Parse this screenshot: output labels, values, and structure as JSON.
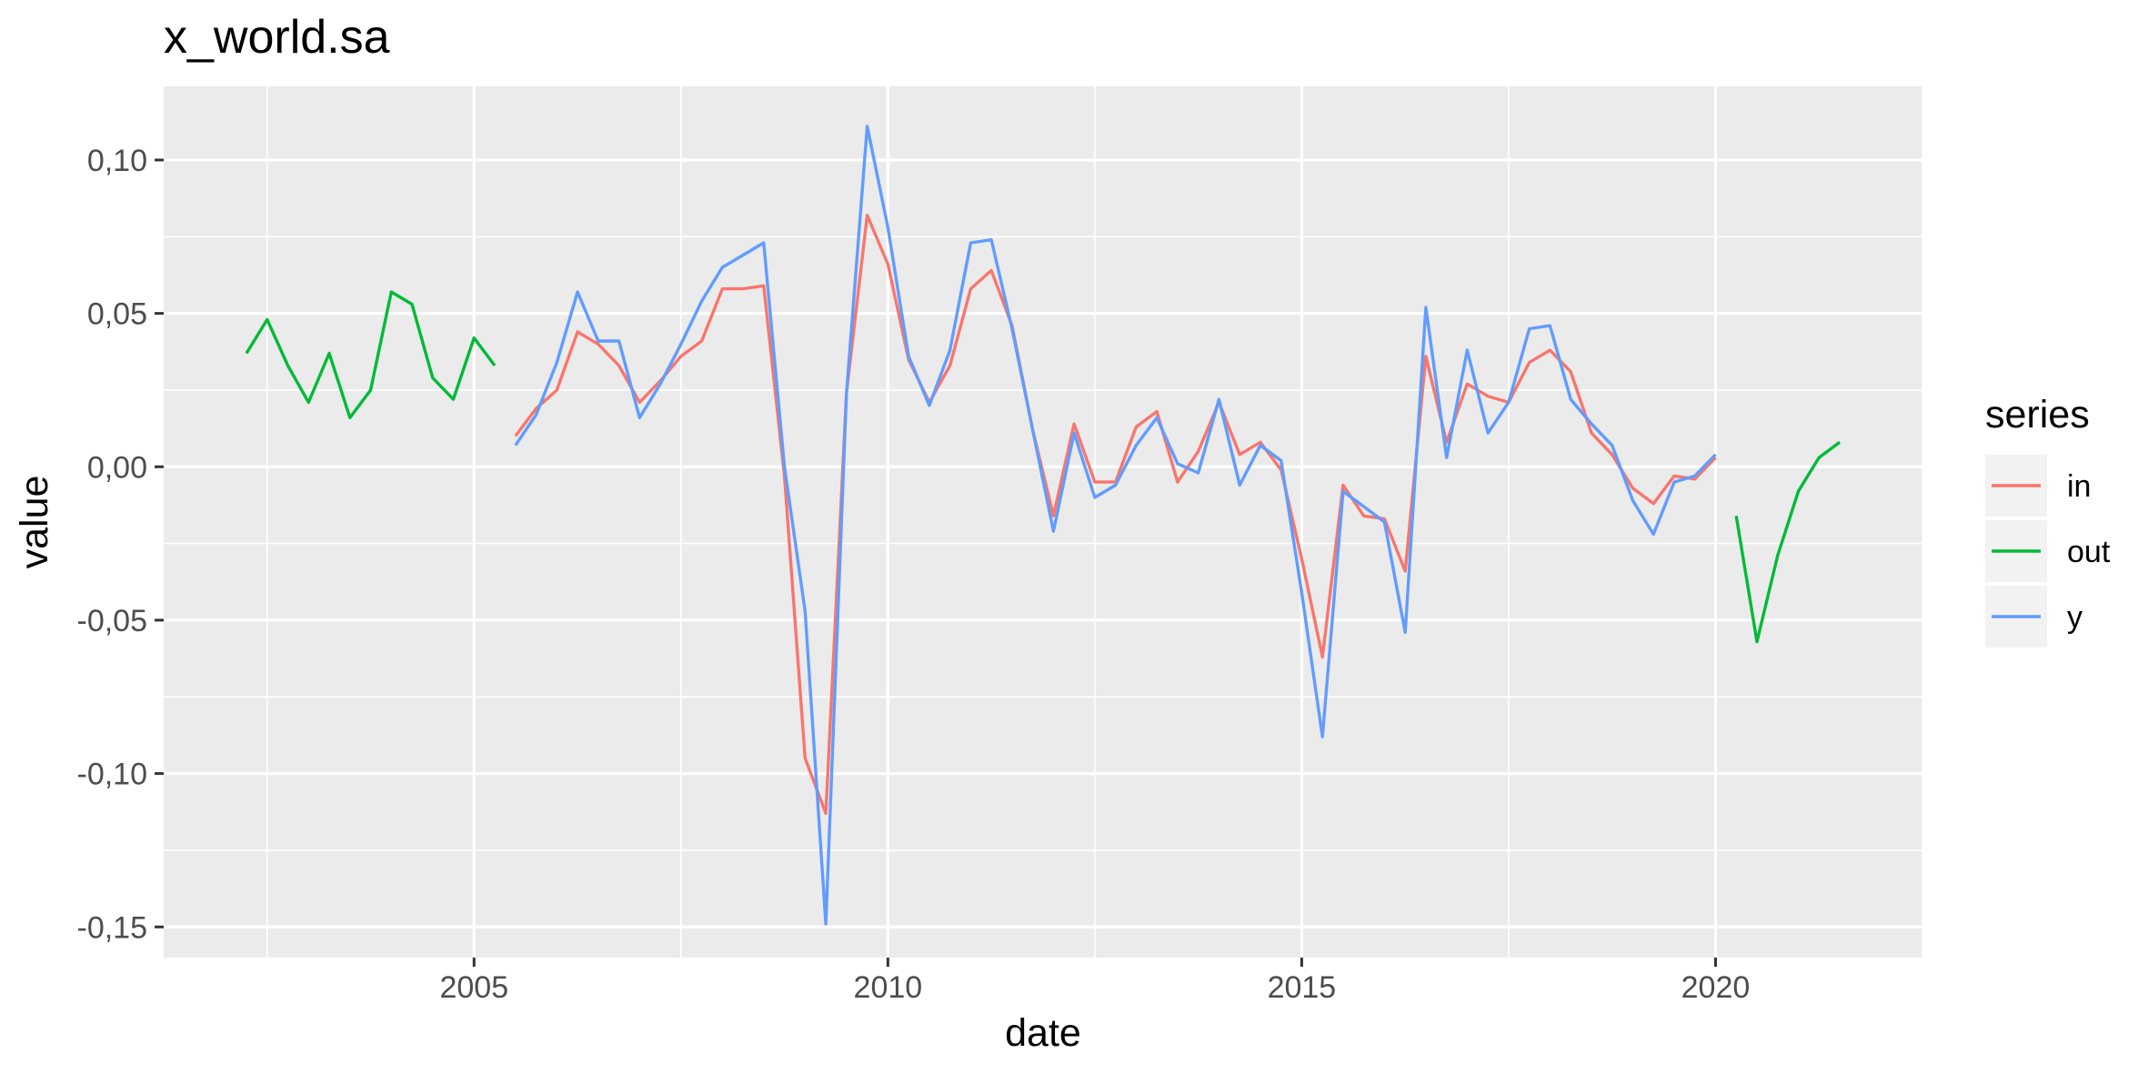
{
  "chart_data": {
    "type": "line",
    "title": "x_world.sa",
    "xlabel": "date",
    "ylabel": "value",
    "xlim": [
      2001.25,
      2022.5
    ],
    "ylim": [
      -0.16,
      0.124
    ],
    "x_ticks": [
      2005,
      2010,
      2015,
      2020
    ],
    "x_tick_labels": [
      "2005",
      "2010",
      "2015",
      "2020"
    ],
    "y_ticks": [
      0.1,
      0.05,
      0.0,
      -0.05,
      -0.1,
      -0.15
    ],
    "y_tick_labels": [
      "0,10",
      "0,05",
      "0,00",
      "-0,05",
      "-0,10",
      "-0,15"
    ],
    "grid": true,
    "legend": {
      "title": "series",
      "position": "right"
    },
    "series": [
      {
        "name": "in",
        "color": "#F8766D",
        "x": [
          2005.5,
          2005.75,
          2006.0,
          2006.25,
          2006.5,
          2006.75,
          2007.0,
          2007.25,
          2007.5,
          2007.75,
          2008.0,
          2008.25,
          2008.5,
          2008.75,
          2009.0,
          2009.25,
          2009.5,
          2009.75,
          2010.0,
          2010.25,
          2010.5,
          2010.75,
          2011.0,
          2011.25,
          2011.5,
          2011.75,
          2012.0,
          2012.25,
          2012.5,
          2012.75,
          2013.0,
          2013.25,
          2013.5,
          2013.75,
          2014.0,
          2014.25,
          2014.5,
          2014.75,
          2015.0,
          2015.25,
          2015.5,
          2015.75,
          2016.0,
          2016.25,
          2016.5,
          2016.75,
          2017.0,
          2017.25,
          2017.5,
          2017.75,
          2018.0,
          2018.25,
          2018.5,
          2018.75,
          2019.0,
          2019.25,
          2019.5,
          2019.75,
          2020.0
        ],
        "values": [
          0.01,
          0.019,
          0.025,
          0.044,
          0.04,
          0.033,
          0.021,
          0.028,
          0.036,
          0.041,
          0.058,
          0.058,
          0.059,
          -0.003,
          -0.095,
          -0.113,
          0.024,
          0.082,
          0.066,
          0.035,
          0.021,
          0.033,
          0.058,
          0.064,
          0.046,
          0.012,
          -0.016,
          0.014,
          -0.005,
          -0.005,
          0.013,
          0.018,
          -0.005,
          0.005,
          0.021,
          0.004,
          0.008,
          -0.001,
          -0.03,
          -0.062,
          -0.006,
          -0.016,
          -0.017,
          -0.034,
          0.036,
          0.008,
          0.027,
          0.023,
          0.021,
          0.034,
          0.038,
          0.031,
          0.011,
          0.004,
          -0.007,
          -0.012,
          -0.003,
          -0.004,
          0.003
        ]
      },
      {
        "name": "out",
        "color": "#00BA38",
        "segments": [
          {
            "x": [
              2002.25,
              2002.5,
              2002.75,
              2003.0,
              2003.25,
              2003.5,
              2003.75,
              2004.0,
              2004.25,
              2004.5,
              2004.75,
              2005.0,
              2005.25
            ],
            "values": [
              0.037,
              0.048,
              0.033,
              0.021,
              0.037,
              0.016,
              0.025,
              0.057,
              0.053,
              0.029,
              0.022,
              0.042,
              0.033
            ]
          },
          {
            "x": [
              2020.25,
              2020.5,
              2020.75,
              2021.0,
              2021.25,
              2021.5
            ],
            "values": [
              -0.016,
              -0.057,
              -0.029,
              -0.008,
              0.003,
              0.008
            ]
          }
        ]
      },
      {
        "name": "y",
        "color": "#619CFF",
        "x": [
          2005.5,
          2005.75,
          2006.0,
          2006.25,
          2006.5,
          2006.75,
          2007.0,
          2007.25,
          2007.5,
          2007.75,
          2008.0,
          2008.25,
          2008.5,
          2008.75,
          2009.0,
          2009.25,
          2009.5,
          2009.75,
          2010.0,
          2010.25,
          2010.5,
          2010.75,
          2011.0,
          2011.25,
          2011.5,
          2011.75,
          2012.0,
          2012.25,
          2012.5,
          2012.75,
          2013.0,
          2013.25,
          2013.5,
          2013.75,
          2014.0,
          2014.25,
          2014.5,
          2014.75,
          2015.0,
          2015.25,
          2015.5,
          2015.75,
          2016.0,
          2016.25,
          2016.5,
          2016.75,
          2017.0,
          2017.25,
          2017.5,
          2017.75,
          2018.0,
          2018.25,
          2018.5,
          2018.75,
          2019.0,
          2019.25,
          2019.5,
          2019.75,
          2020.0
        ],
        "values": [
          0.007,
          0.017,
          0.034,
          0.057,
          0.041,
          0.041,
          0.016,
          0.027,
          0.04,
          0.054,
          0.065,
          0.069,
          0.073,
          0.0,
          -0.047,
          -0.149,
          0.024,
          0.111,
          0.078,
          0.036,
          0.02,
          0.038,
          0.073,
          0.074,
          0.045,
          0.012,
          -0.021,
          0.011,
          -0.01,
          -0.006,
          0.007,
          0.016,
          0.001,
          -0.002,
          0.022,
          -0.006,
          0.007,
          0.002,
          -0.041,
          -0.088,
          -0.008,
          -0.013,
          -0.018,
          -0.054,
          0.052,
          0.003,
          0.038,
          0.011,
          0.021,
          0.045,
          0.046,
          0.022,
          0.014,
          0.007,
          -0.011,
          -0.022,
          -0.005,
          -0.003,
          0.004
        ]
      }
    ]
  }
}
